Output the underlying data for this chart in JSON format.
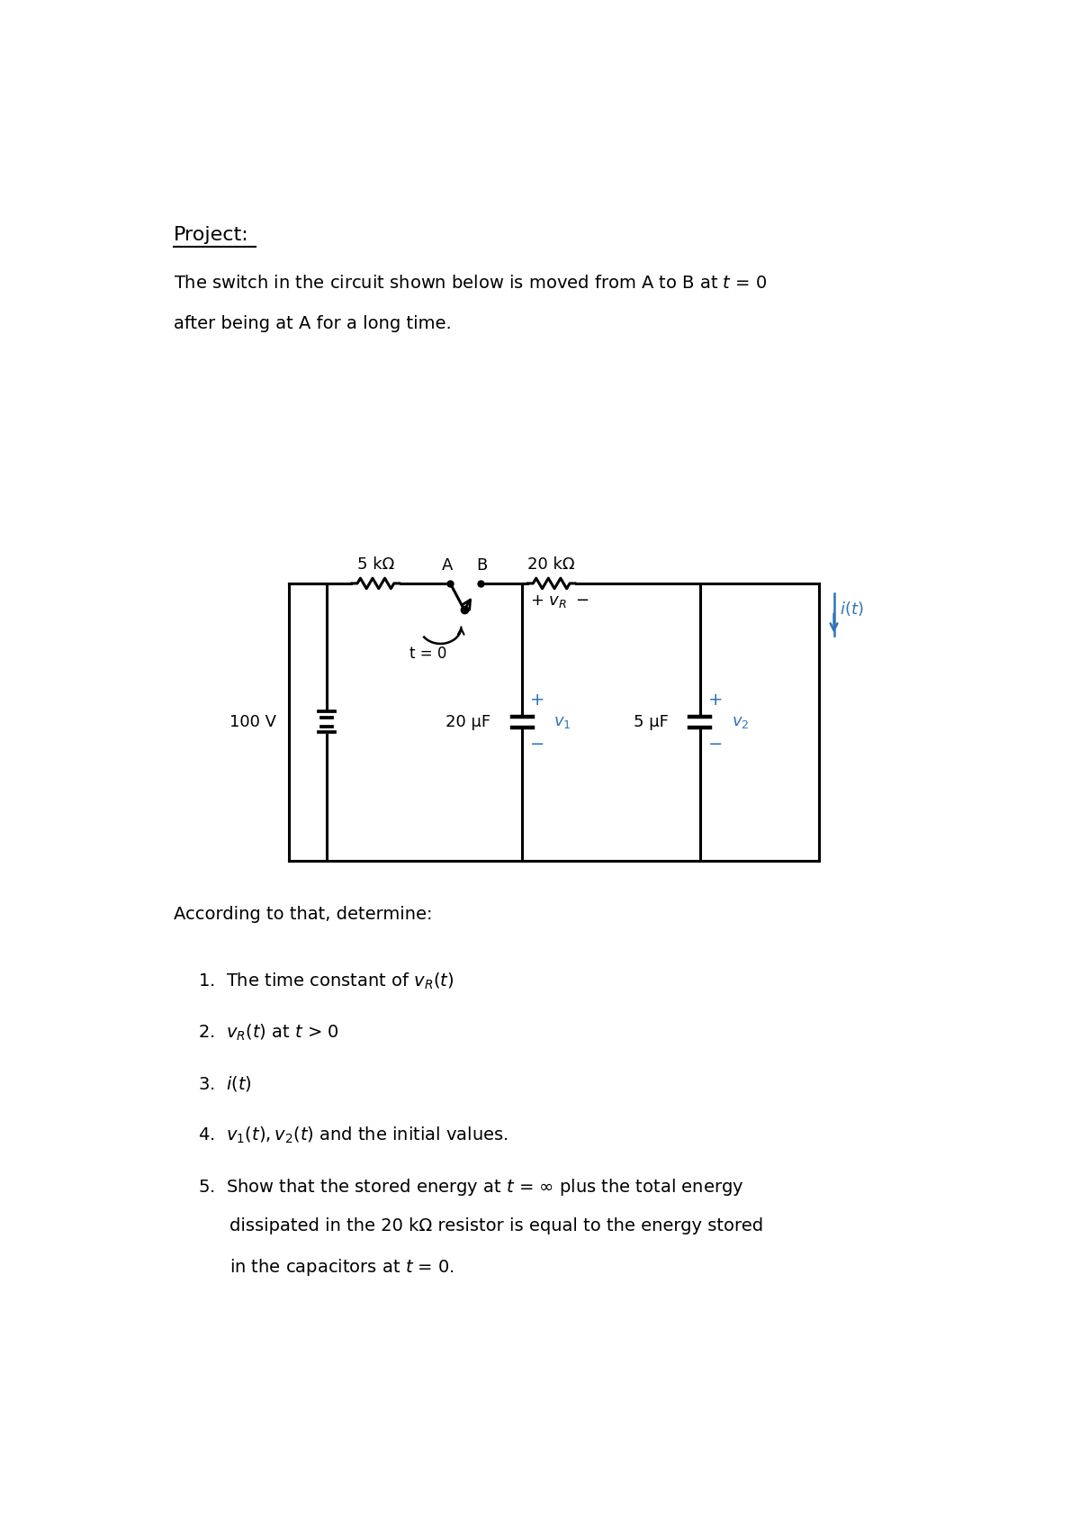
{
  "bg_color": "#ffffff",
  "title": "Project:",
  "intro_line1": "The switch in the circuit shown below is moved from A to B at ",
  "intro_t_eq": "t = 0",
  "intro_line2": "after being at A for a long time.",
  "according": "According to that, determine:",
  "resistor1_label": "5 kΩ",
  "resistor2_label": "20 kΩ",
  "cap1_label": "20 μF",
  "cap2_label": "5 μF",
  "voltage_label": "100 V",
  "switch_A": "A",
  "switch_B": "B",
  "switch_t": "t = 0",
  "blue_color": "#2E75B6",
  "black_color": "#000000"
}
